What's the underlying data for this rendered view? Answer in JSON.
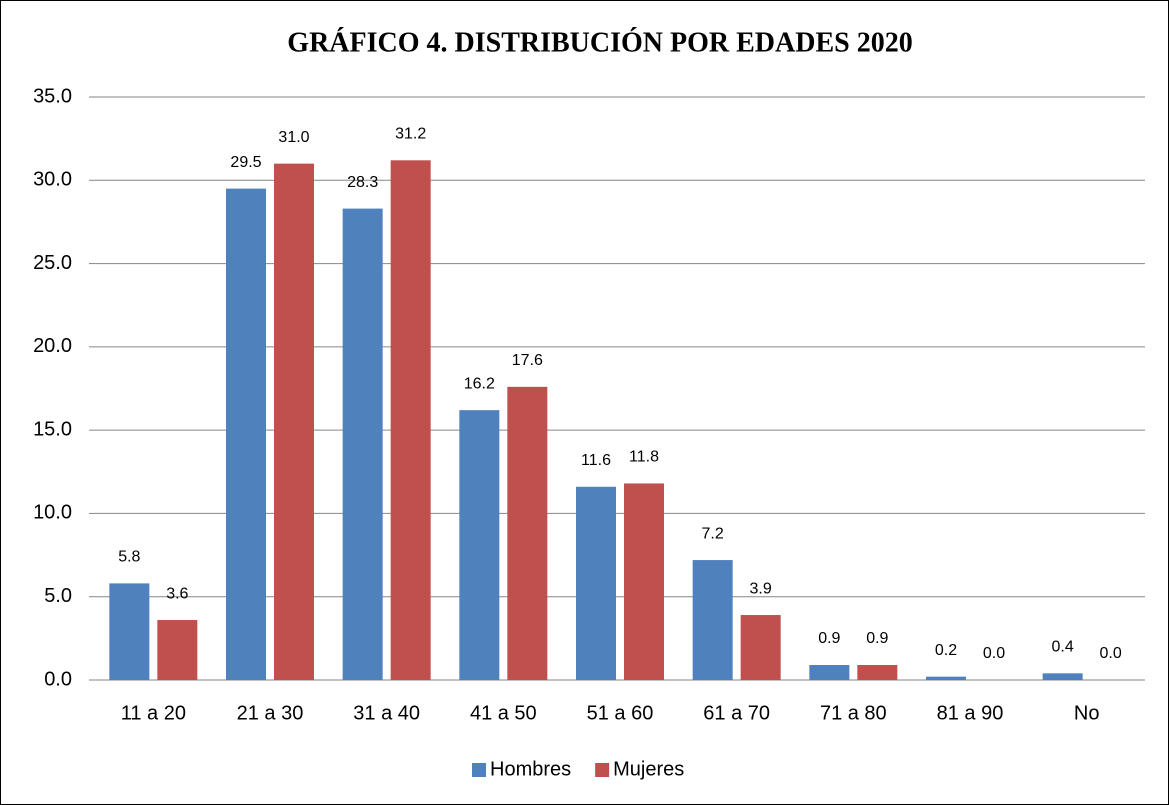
{
  "chart_data": {
    "type": "bar",
    "title": "GRÁFICO 4. DISTRIBUCIÓN POR EDADES  2020",
    "categories": [
      "11 a 20",
      "21 a 30",
      "31 a 40",
      "41 a 50",
      "51 a 60",
      "61 a 70",
      "71 a 80",
      "81 a 90",
      "No"
    ],
    "series": [
      {
        "name": "Hombres",
        "color": "#4f81bd",
        "values": [
          5.8,
          29.5,
          28.3,
          16.2,
          11.6,
          7.2,
          0.9,
          0.2,
          0.4
        ],
        "value_labels": [
          "5.8",
          "29.5",
          "28.3",
          "16.2",
          "11.6",
          "7.2",
          "0.9",
          "0.2",
          "0.4"
        ]
      },
      {
        "name": "Mujeres",
        "color": "#c0504d",
        "values": [
          3.6,
          31.0,
          31.2,
          17.6,
          11.8,
          3.9,
          0.9,
          0.0,
          0.0
        ],
        "value_labels": [
          "3.6",
          "31.0",
          "31.2",
          "17.6",
          "11.8",
          "3.9",
          "0.9",
          "0.0",
          "0.0"
        ]
      }
    ],
    "ylim": [
      0,
      35
    ],
    "yticks": [
      {
        "value": 0,
        "label": "0.0"
      },
      {
        "value": 5,
        "label": "5.0"
      },
      {
        "value": 10,
        "label": "10.0"
      },
      {
        "value": 15,
        "label": "15.0"
      },
      {
        "value": 20,
        "label": "20.0"
      },
      {
        "value": 25,
        "label": "25.0"
      },
      {
        "value": 30,
        "label": "30.0"
      },
      {
        "value": 35,
        "label": "35.0"
      }
    ],
    "grid": true,
    "legend": "bottom"
  }
}
